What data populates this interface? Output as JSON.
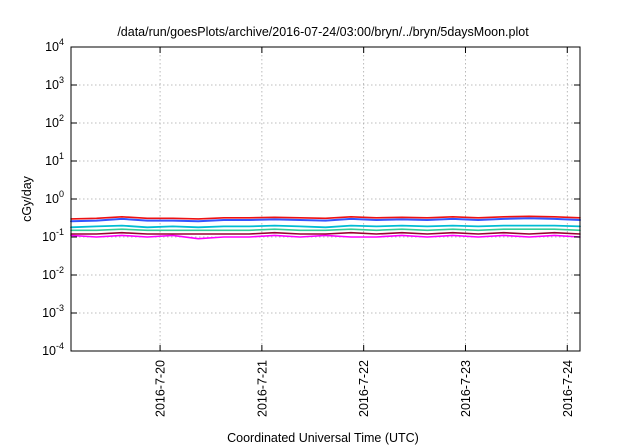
{
  "chart_data": {
    "type": "line",
    "title": "/data/run/goesPlots/archive/2016-07-24/03:00/bryn/../bryn/5daysMoon.plot",
    "xlabel": "Coordinated Universal Time (UTC)",
    "ylabel": "cGy/day",
    "yscale": "log",
    "ylim": [
      0.0001,
      10000
    ],
    "xlim": [
      "2016-07-19T03:00",
      "2016-07-24T03:00"
    ],
    "grid": true,
    "legend": "none",
    "y_ticks": [
      {
        "base": "10",
        "exp": "-4",
        "value": 0.0001
      },
      {
        "base": "10",
        "exp": "-3",
        "value": 0.001
      },
      {
        "base": "10",
        "exp": "-2",
        "value": 0.01
      },
      {
        "base": "10",
        "exp": "-1",
        "value": 0.1
      },
      {
        "base": "10",
        "exp": "0",
        "value": 1
      },
      {
        "base": "10",
        "exp": "1",
        "value": 10
      },
      {
        "base": "10",
        "exp": "2",
        "value": 100
      },
      {
        "base": "10",
        "exp": "3",
        "value": 1000
      },
      {
        "base": "10",
        "exp": "4",
        "value": 10000
      }
    ],
    "x_ticks": [
      {
        "label": "2016-7-20",
        "value": "2016-07-20T00:00"
      },
      {
        "label": "2016-7-21",
        "value": "2016-07-21T00:00"
      },
      {
        "label": "2016-7-22",
        "value": "2016-07-22T00:00"
      },
      {
        "label": "2016-7-23",
        "value": "2016-07-23T00:00"
      },
      {
        "label": "2016-7-24",
        "value": "2016-07-24T00:00"
      }
    ],
    "series": [
      {
        "color": "#ff00ff",
        "x": [
          "2016-07-19T03:00",
          "2016-07-19T09:00",
          "2016-07-19T15:00",
          "2016-07-19T21:00",
          "2016-07-20T03:00",
          "2016-07-20T09:00",
          "2016-07-20T15:00",
          "2016-07-20T21:00",
          "2016-07-21T03:00",
          "2016-07-21T09:00",
          "2016-07-21T15:00",
          "2016-07-21T21:00",
          "2016-07-22T03:00",
          "2016-07-22T09:00",
          "2016-07-22T15:00",
          "2016-07-22T21:00",
          "2016-07-23T03:00",
          "2016-07-23T09:00",
          "2016-07-23T15:00",
          "2016-07-23T21:00",
          "2016-07-24T03:00"
        ],
        "y": [
          0.11,
          0.1,
          0.11,
          0.1,
          0.11,
          0.09,
          0.1,
          0.1,
          0.11,
          0.1,
          0.11,
          0.1,
          0.1,
          0.11,
          0.1,
          0.11,
          0.1,
          0.11,
          0.1,
          0.11,
          0.1
        ]
      },
      {
        "color": "#990033",
        "x": [
          "2016-07-19T03:00",
          "2016-07-19T09:00",
          "2016-07-19T15:00",
          "2016-07-19T21:00",
          "2016-07-20T03:00",
          "2016-07-20T09:00",
          "2016-07-20T15:00",
          "2016-07-20T21:00",
          "2016-07-21T03:00",
          "2016-07-21T09:00",
          "2016-07-21T15:00",
          "2016-07-21T21:00",
          "2016-07-22T03:00",
          "2016-07-22T09:00",
          "2016-07-22T15:00",
          "2016-07-22T21:00",
          "2016-07-23T03:00",
          "2016-07-23T09:00",
          "2016-07-23T15:00",
          "2016-07-23T21:00",
          "2016-07-24T03:00"
        ],
        "y": [
          0.12,
          0.12,
          0.13,
          0.12,
          0.12,
          0.12,
          0.12,
          0.12,
          0.13,
          0.12,
          0.12,
          0.13,
          0.12,
          0.13,
          0.12,
          0.13,
          0.12,
          0.13,
          0.12,
          0.13,
          0.12
        ]
      },
      {
        "color": "#33cc99",
        "x": [
          "2016-07-19T03:00",
          "2016-07-19T09:00",
          "2016-07-19T15:00",
          "2016-07-19T21:00",
          "2016-07-20T03:00",
          "2016-07-20T09:00",
          "2016-07-20T15:00",
          "2016-07-20T21:00",
          "2016-07-21T03:00",
          "2016-07-21T09:00",
          "2016-07-21T15:00",
          "2016-07-21T21:00",
          "2016-07-22T03:00",
          "2016-07-22T09:00",
          "2016-07-22T15:00",
          "2016-07-22T21:00",
          "2016-07-23T03:00",
          "2016-07-23T09:00",
          "2016-07-23T15:00",
          "2016-07-23T21:00",
          "2016-07-24T03:00"
        ],
        "y": [
          0.15,
          0.15,
          0.16,
          0.15,
          0.15,
          0.15,
          0.15,
          0.15,
          0.16,
          0.15,
          0.15,
          0.16,
          0.15,
          0.16,
          0.15,
          0.16,
          0.15,
          0.16,
          0.16,
          0.16,
          0.15
        ]
      },
      {
        "color": "#00bcd4",
        "x": [
          "2016-07-19T03:00",
          "2016-07-19T09:00",
          "2016-07-19T15:00",
          "2016-07-19T21:00",
          "2016-07-20T03:00",
          "2016-07-20T09:00",
          "2016-07-20T15:00",
          "2016-07-20T21:00",
          "2016-07-21T03:00",
          "2016-07-21T09:00",
          "2016-07-21T15:00",
          "2016-07-21T21:00",
          "2016-07-22T03:00",
          "2016-07-22T09:00",
          "2016-07-22T15:00",
          "2016-07-22T21:00",
          "2016-07-23T03:00",
          "2016-07-23T09:00",
          "2016-07-23T15:00",
          "2016-07-23T21:00",
          "2016-07-24T03:00"
        ],
        "y": [
          0.18,
          0.19,
          0.2,
          0.18,
          0.19,
          0.18,
          0.19,
          0.19,
          0.2,
          0.19,
          0.18,
          0.2,
          0.19,
          0.2,
          0.19,
          0.2,
          0.19,
          0.2,
          0.2,
          0.2,
          0.19
        ]
      },
      {
        "color": "#3355ff",
        "x": [
          "2016-07-19T03:00",
          "2016-07-19T09:00",
          "2016-07-19T15:00",
          "2016-07-19T21:00",
          "2016-07-20T03:00",
          "2016-07-20T09:00",
          "2016-07-20T15:00",
          "2016-07-20T21:00",
          "2016-07-21T03:00",
          "2016-07-21T09:00",
          "2016-07-21T15:00",
          "2016-07-21T21:00",
          "2016-07-22T03:00",
          "2016-07-22T09:00",
          "2016-07-22T15:00",
          "2016-07-22T21:00",
          "2016-07-23T03:00",
          "2016-07-23T09:00",
          "2016-07-23T15:00",
          "2016-07-23T21:00",
          "2016-07-24T03:00"
        ],
        "y": [
          0.26,
          0.27,
          0.3,
          0.27,
          0.27,
          0.26,
          0.28,
          0.28,
          0.29,
          0.28,
          0.27,
          0.3,
          0.28,
          0.29,
          0.28,
          0.3,
          0.28,
          0.3,
          0.31,
          0.3,
          0.28
        ]
      },
      {
        "color": "#ee1111",
        "x": [
          "2016-07-19T03:00",
          "2016-07-19T09:00",
          "2016-07-19T15:00",
          "2016-07-19T21:00",
          "2016-07-20T03:00",
          "2016-07-20T09:00",
          "2016-07-20T15:00",
          "2016-07-20T21:00",
          "2016-07-21T03:00",
          "2016-07-21T09:00",
          "2016-07-21T15:00",
          "2016-07-21T21:00",
          "2016-07-22T03:00",
          "2016-07-22T09:00",
          "2016-07-22T15:00",
          "2016-07-22T21:00",
          "2016-07-23T03:00",
          "2016-07-23T09:00",
          "2016-07-23T15:00",
          "2016-07-23T21:00",
          "2016-07-24T03:00"
        ],
        "y": [
          0.3,
          0.31,
          0.34,
          0.31,
          0.31,
          0.3,
          0.32,
          0.32,
          0.33,
          0.32,
          0.31,
          0.34,
          0.32,
          0.33,
          0.32,
          0.34,
          0.32,
          0.34,
          0.35,
          0.34,
          0.32
        ]
      }
    ]
  }
}
